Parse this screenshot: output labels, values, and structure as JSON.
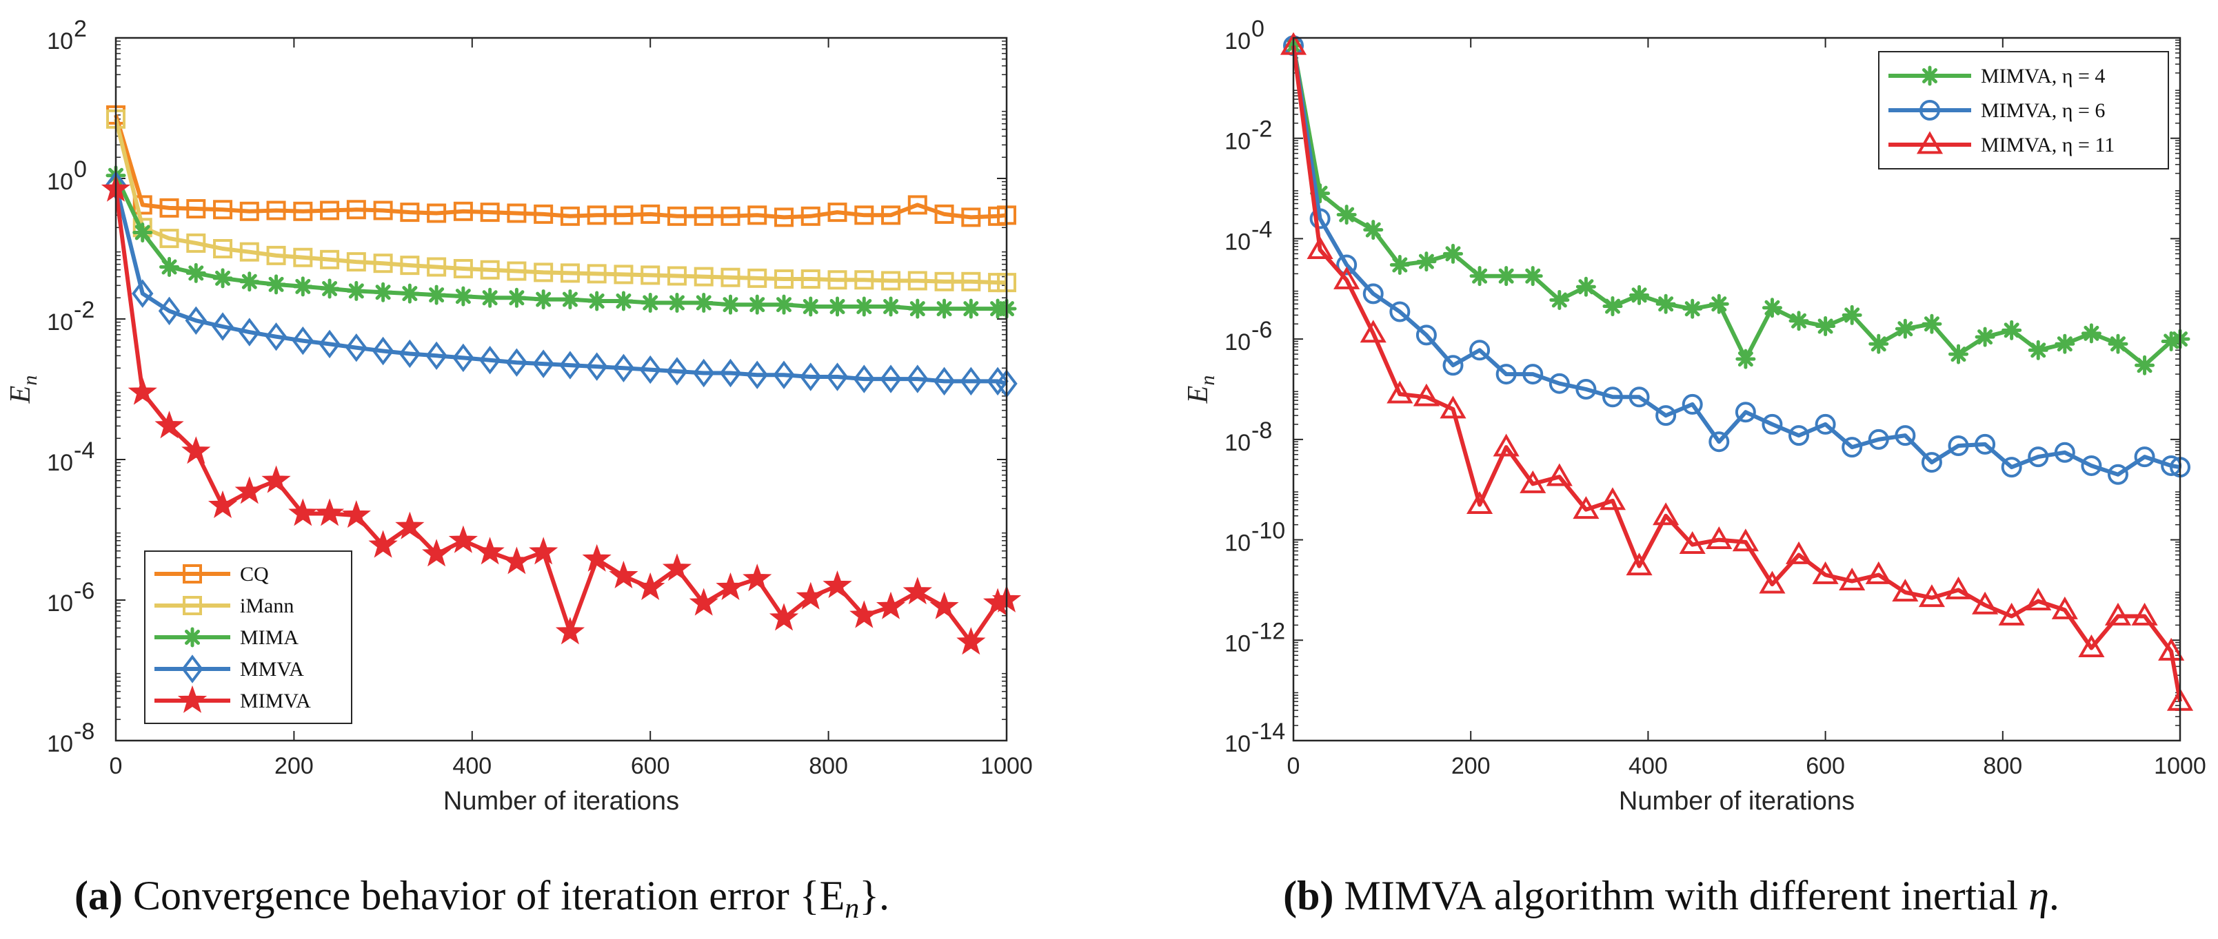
{
  "chart_data": [
    {
      "type": "line",
      "panel": "a",
      "caption_letter": "(a)",
      "caption": "Convergence behavior of iteration error {E",
      "caption_sub": "n",
      "caption_end": "}.",
      "xlabel": "Number of iterations",
      "ylabel": "E",
      "ylabel_sub": "n",
      "yscale": "log",
      "xlim": [
        0,
        1000
      ],
      "ylim_exp": [
        -8,
        2
      ],
      "xticks": [
        0,
        200,
        400,
        600,
        800,
        1000
      ],
      "xtick_labels": [
        "0",
        "200",
        "400",
        "600",
        "800",
        "1000"
      ],
      "yticks_exp": [
        2,
        0,
        -2,
        -4,
        -6,
        -8
      ],
      "ytick_labels": [
        "2",
        "0",
        "-2",
        "-4",
        "-6",
        "-8"
      ],
      "ytick_base": "10",
      "legend": "bottom-left",
      "x": [
        0,
        30,
        60,
        90,
        120,
        150,
        180,
        210,
        240,
        270,
        300,
        330,
        360,
        390,
        420,
        450,
        480,
        510,
        540,
        570,
        600,
        630,
        660,
        690,
        720,
        750,
        780,
        810,
        840,
        870,
        900,
        930,
        960,
        990,
        1000
      ],
      "series": [
        {
          "name": "CQ",
          "color": "#F28522",
          "marker": "square",
          "values": [
            8,
            0.42,
            0.38,
            0.37,
            0.36,
            0.34,
            0.35,
            0.34,
            0.35,
            0.36,
            0.35,
            0.33,
            0.32,
            0.34,
            0.33,
            0.32,
            0.31,
            0.29,
            0.3,
            0.3,
            0.31,
            0.29,
            0.29,
            0.29,
            0.3,
            0.28,
            0.29,
            0.33,
            0.3,
            0.3,
            0.42,
            0.31,
            0.28,
            0.29,
            0.3
          ]
        },
        {
          "name": "iMann",
          "color": "#E5C961",
          "marker": "square",
          "values": [
            7,
            0.2,
            0.14,
            0.12,
            0.1,
            0.09,
            0.08,
            0.075,
            0.07,
            0.065,
            0.062,
            0.058,
            0.055,
            0.052,
            0.05,
            0.048,
            0.046,
            0.045,
            0.044,
            0.043,
            0.042,
            0.041,
            0.04,
            0.039,
            0.038,
            0.037,
            0.037,
            0.036,
            0.036,
            0.035,
            0.035,
            0.034,
            0.034,
            0.033,
            0.033
          ]
        },
        {
          "name": "MIMA",
          "color": "#4DB04A",
          "marker": "asterisk",
          "values": [
            1.1,
            0.17,
            0.055,
            0.045,
            0.038,
            0.034,
            0.031,
            0.029,
            0.027,
            0.025,
            0.024,
            0.023,
            0.022,
            0.021,
            0.02,
            0.02,
            0.019,
            0.019,
            0.018,
            0.018,
            0.017,
            0.017,
            0.017,
            0.016,
            0.016,
            0.016,
            0.015,
            0.015,
            0.015,
            0.015,
            0.014,
            0.014,
            0.014,
            0.014,
            0.014
          ]
        },
        {
          "name": "MMVA",
          "color": "#3C7CC0",
          "marker": "diamond",
          "values": [
            0.8,
            0.023,
            0.013,
            0.0095,
            0.0078,
            0.0065,
            0.0056,
            0.0049,
            0.0044,
            0.0039,
            0.0035,
            0.0032,
            0.003,
            0.0028,
            0.0026,
            0.0024,
            0.0023,
            0.0022,
            0.0021,
            0.002,
            0.0019,
            0.0018,
            0.0017,
            0.0017,
            0.0016,
            0.0016,
            0.0015,
            0.0015,
            0.0014,
            0.0014,
            0.0014,
            0.0013,
            0.0013,
            0.0013,
            0.0012
          ]
        },
        {
          "name": "MIMVA",
          "color": "#E42B2F",
          "marker": "star",
          "values": [
            0.7,
            0.0009,
            0.0003,
            0.00013,
            2.2e-05,
            3.5e-05,
            5e-05,
            1.7e-05,
            1.7e-05,
            1.6e-05,
            6e-06,
            1.1e-05,
            4.5e-06,
            7e-06,
            4.8e-06,
            3.5e-06,
            4.8e-06,
            3.5e-07,
            3.8e-06,
            2.2e-06,
            1.5e-06,
            2.8e-06,
            9e-07,
            1.5e-06,
            2e-06,
            5.5e-07,
            1.1e-06,
            1.6e-06,
            6e-07,
            8e-07,
            1.3e-06,
            8e-07,
            2.5e-07,
            9e-07,
            1e-06
          ]
        }
      ]
    },
    {
      "type": "line",
      "panel": "b",
      "caption_letter": "(b)",
      "caption": "MIMVA algorithm with different inertial",
      "caption_var": "η",
      "caption_end": ".",
      "xlabel": "Number of iterations",
      "ylabel": "E",
      "ylabel_sub": "n",
      "yscale": "log",
      "xlim": [
        0,
        1000
      ],
      "ylim_exp": [
        -14,
        0
      ],
      "xticks": [
        0,
        200,
        400,
        600,
        800,
        1000
      ],
      "xtick_labels": [
        "0",
        "200",
        "400",
        "600",
        "800",
        "1000"
      ],
      "yticks_exp": [
        0,
        -2,
        -4,
        -6,
        -8,
        -10,
        -12,
        -14
      ],
      "ytick_labels": [
        "0",
        "-2",
        "-4",
        "-6",
        "-8",
        "-10",
        "-12",
        "-14"
      ],
      "ytick_base": "10",
      "legend": "top-right",
      "x": [
        0,
        30,
        60,
        90,
        120,
        150,
        180,
        210,
        240,
        270,
        300,
        330,
        360,
        390,
        420,
        450,
        480,
        510,
        540,
        570,
        600,
        630,
        660,
        690,
        720,
        750,
        780,
        810,
        840,
        870,
        900,
        930,
        960,
        990,
        1000
      ],
      "series": [
        {
          "name": "MIMVA, η = 4",
          "color": "#4DB04A",
          "marker": "asterisk",
          "values": [
            0.7,
            0.0008,
            0.0003,
            0.00015,
            3e-05,
            3.5e-05,
            5e-05,
            1.8e-05,
            1.8e-05,
            1.8e-05,
            6e-06,
            1.1e-05,
            4.5e-06,
            7.5e-06,
            5e-06,
            4e-06,
            5e-06,
            4e-07,
            4.2e-06,
            2.3e-06,
            1.8e-06,
            3e-06,
            8e-07,
            1.6e-06,
            2e-06,
            5e-07,
            1.1e-06,
            1.5e-06,
            6e-07,
            8e-07,
            1.3e-06,
            8e-07,
            3e-07,
            9e-07,
            1e-06
          ]
        },
        {
          "name": "MIMVA, η = 6",
          "color": "#3C7CC0",
          "marker": "circle",
          "values": [
            0.7,
            0.00025,
            3e-05,
            8e-06,
            3.5e-06,
            1.2e-06,
            3e-07,
            6e-07,
            2e-07,
            2e-07,
            1.3e-07,
            1e-07,
            7e-08,
            7e-08,
            3e-08,
            5e-08,
            9e-09,
            3.5e-08,
            2e-08,
            1.2e-08,
            2e-08,
            7e-09,
            1e-08,
            1.2e-08,
            3.5e-09,
            7.5e-09,
            8e-09,
            2.8e-09,
            4.5e-09,
            5.5e-09,
            3e-09,
            2e-09,
            4.5e-09,
            3e-09,
            2.8e-09
          ]
        },
        {
          "name": "MIMVA, η = 11",
          "color": "#E42B2F",
          "marker": "triangle",
          "values": [
            0.7,
            6e-05,
            1.5e-05,
            1.3e-06,
            8e-08,
            7e-08,
            4e-08,
            5e-10,
            7e-09,
            1.3e-09,
            1.8e-09,
            4e-10,
            6e-10,
            3e-11,
            3e-10,
            8e-11,
            1e-10,
            9e-11,
            1.3e-11,
            5e-11,
            2e-11,
            1.5e-11,
            2e-11,
            9e-12,
            7e-12,
            1e-11,
            5e-12,
            3e-12,
            6e-12,
            4e-12,
            7e-13,
            3e-12,
            3e-12,
            6e-13,
            6e-14
          ]
        }
      ]
    }
  ]
}
